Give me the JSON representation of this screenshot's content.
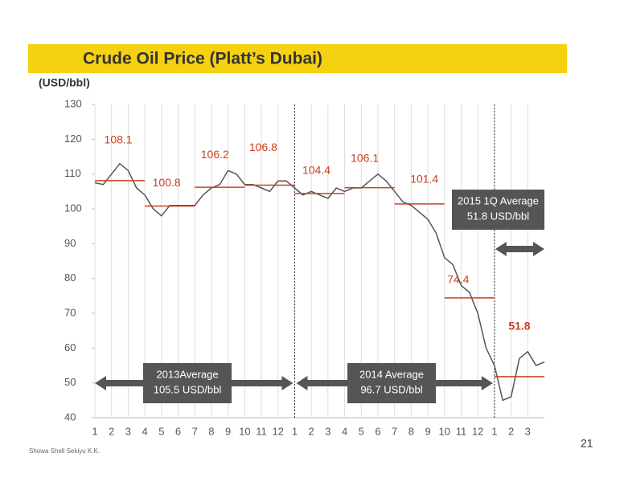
{
  "chart_data": {
    "type": "line",
    "title": "Crude Oil Price (Platt’s Dubai)",
    "y_label": "(USD/bbl)",
    "xlim": [
      0,
      27
    ],
    "ylim": [
      40,
      130
    ],
    "yticks": [
      40,
      50,
      60,
      70,
      80,
      90,
      100,
      110,
      120,
      130
    ],
    "xticks": [
      {
        "value": 0,
        "label": "1"
      },
      {
        "value": 1,
        "label": "2"
      },
      {
        "value": 2,
        "label": "3"
      },
      {
        "value": 3,
        "label": "4"
      },
      {
        "value": 4,
        "label": "5"
      },
      {
        "value": 5,
        "label": "6"
      },
      {
        "value": 6,
        "label": "7"
      },
      {
        "value": 7,
        "label": "8"
      },
      {
        "value": 8,
        "label": "9"
      },
      {
        "value": 9,
        "label": "10"
      },
      {
        "value": 10,
        "label": "11"
      },
      {
        "value": 11,
        "label": "12"
      },
      {
        "value": 12,
        "label": "1"
      },
      {
        "value": 13,
        "label": "2"
      },
      {
        "value": 14,
        "label": "3"
      },
      {
        "value": 15,
        "label": "4"
      },
      {
        "value": 16,
        "label": "5"
      },
      {
        "value": 17,
        "label": "6"
      },
      {
        "value": 18,
        "label": "7"
      },
      {
        "value": 19,
        "label": "8"
      },
      {
        "value": 20,
        "label": "9"
      },
      {
        "value": 21,
        "label": "10"
      },
      {
        "value": 22,
        "label": "11"
      },
      {
        "value": 23,
        "label": "12"
      },
      {
        "value": 24,
        "label": "1"
      },
      {
        "value": 25,
        "label": "2"
      },
      {
        "value": 26,
        "label": "3"
      }
    ],
    "year_dividers": [
      12,
      24
    ],
    "grid": true,
    "series": [
      {
        "color": "#555555",
        "x": [
          0,
          0.5,
          1,
          1.5,
          2,
          2.5,
          3,
          3.5,
          4,
          4.5,
          5,
          5.5,
          6,
          6.5,
          7,
          7.5,
          8,
          8.5,
          9,
          9.5,
          10,
          10.5,
          11,
          11.5,
          12,
          12.5,
          13,
          13.5,
          14,
          14.5,
          15,
          15.5,
          16,
          16.5,
          17,
          17.5,
          18,
          18.5,
          19,
          19.5,
          20,
          20.5,
          21,
          21.5,
          22,
          22.5,
          23,
          23.5,
          24,
          24.5,
          25,
          25.5,
          26,
          26.5,
          27
        ],
        "values": [
          107.5,
          107,
          110,
          113,
          111,
          106,
          104,
          100,
          98,
          101,
          101,
          101,
          101,
          104,
          106,
          107,
          111,
          110,
          107,
          107,
          106,
          105,
          108,
          108,
          106,
          104,
          105,
          104,
          103,
          106,
          105,
          106,
          106,
          108,
          110,
          108,
          105,
          102,
          101,
          99,
          97,
          93,
          86,
          84,
          78,
          76,
          70,
          60,
          55,
          45,
          46,
          57,
          59,
          55,
          56
        ]
      }
    ],
    "quarter_averages": {
      "color": "#c8411e",
      "start": [
        0,
        3,
        6,
        9,
        12,
        15,
        18,
        21,
        24
      ],
      "end": [
        3,
        6,
        9,
        12,
        15,
        18,
        21,
        24,
        27
      ],
      "values": [
        108.1,
        100.8,
        106.2,
        106.8,
        104.4,
        106.1,
        101.4,
        74.4,
        51.8
      ]
    },
    "annotations": [
      {
        "lines": [
          "2013Average",
          "105.5 USD/bbl"
        ]
      },
      {
        "lines": [
          "2014 Average",
          "96.7 USD/bbl"
        ]
      },
      {
        "lines": [
          "2015 1Q Average",
          "51.8 USD/bbl"
        ]
      }
    ]
  },
  "footer": {
    "company": "Showa Shell Sekiyu K.K.",
    "page": "21"
  }
}
